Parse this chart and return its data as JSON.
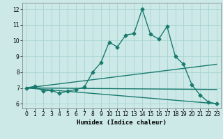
{
  "title": "",
  "xlabel": "Humidex (Indice chaleur)",
  "xlim": [
    -0.5,
    23.5
  ],
  "ylim": [
    5.7,
    12.4
  ],
  "background_color": "#cce9e7",
  "grid_color": "#a8d4d1",
  "line_color": "#1a7a6e",
  "xticks": [
    0,
    1,
    2,
    3,
    4,
    5,
    6,
    7,
    8,
    9,
    10,
    11,
    12,
    13,
    14,
    15,
    16,
    17,
    18,
    19,
    20,
    21,
    22,
    23
  ],
  "yticks": [
    6,
    7,
    8,
    9,
    10,
    11,
    12
  ],
  "curves": [
    {
      "x": [
        0,
        1,
        2,
        3,
        4,
        5,
        6,
        7,
        8,
        9,
        10,
        11,
        12,
        13,
        14,
        15,
        16,
        17,
        18,
        19,
        20,
        21,
        22,
        23
      ],
      "y": [
        7.0,
        7.1,
        6.8,
        6.85,
        6.65,
        6.8,
        6.9,
        7.05,
        8.0,
        8.6,
        9.9,
        9.6,
        10.35,
        10.45,
        12.0,
        10.4,
        10.1,
        10.9,
        9.0,
        8.5,
        7.2,
        6.55,
        6.1,
        6.0
      ],
      "has_marker": true,
      "markersize": 2.5,
      "linewidth": 1.0
    },
    {
      "x": [
        0,
        23
      ],
      "y": [
        7.0,
        8.5
      ],
      "has_marker": false,
      "markersize": 0,
      "linewidth": 1.0
    },
    {
      "x": [
        0,
        23
      ],
      "y": [
        7.0,
        6.9
      ],
      "has_marker": false,
      "markersize": 0,
      "linewidth": 1.0
    },
    {
      "x": [
        0,
        23
      ],
      "y": [
        7.0,
        6.0
      ],
      "has_marker": false,
      "markersize": 0,
      "linewidth": 1.0
    }
  ]
}
